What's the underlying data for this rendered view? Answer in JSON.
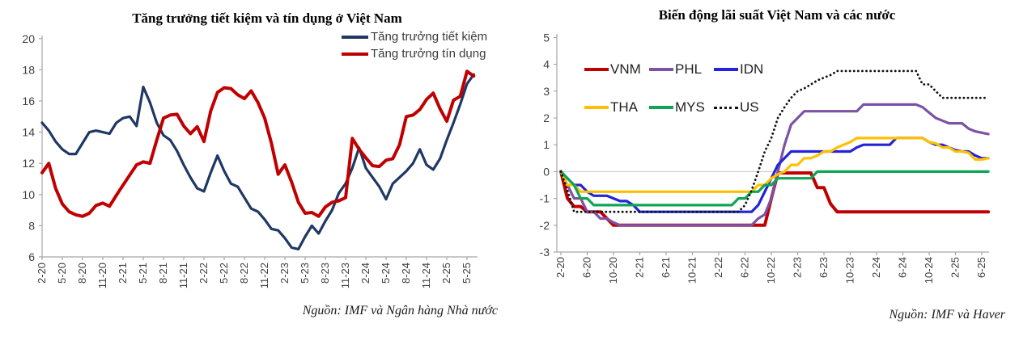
{
  "accent_colors": {
    "navy": "#1F3864",
    "dark_red": "#C00000",
    "purple": "#7C52A5",
    "blue": "#2323D9",
    "gold": "#FFC000",
    "green": "#0FA456",
    "black": "#111111",
    "axis_gray": "#A6A6A6",
    "label_gray": "#404040"
  },
  "chart_data": [
    {
      "type": "line",
      "title": "Tăng trưởng tiết kiệm và tín dụng ở Việt Nam",
      "source": "Nguồn: IMF và Ngân hàng Nhà nước",
      "x_unit": "monthly",
      "x_start_month": "2-20",
      "x_end_month": "6-25",
      "x_tick_labels": [
        "2-20",
        "5-20",
        "8-20",
        "11-20",
        "2-21",
        "5-21",
        "8-21",
        "11-21",
        "2-22",
        "5-22",
        "8-22",
        "11-22",
        "2-23",
        "5-23",
        "8-23",
        "11-23",
        "2-24",
        "5-24",
        "8-24",
        "11-24",
        "2-25",
        "5-25"
      ],
      "y_tick_labels": [
        20,
        18,
        16,
        14,
        12,
        10,
        8,
        6
      ],
      "ylim": [
        6,
        20
      ],
      "grid": false,
      "legend_position": "top-right",
      "legend": [
        {
          "label": "Tăng trưởng tiết kiệm",
          "color": "#1F3864",
          "style": "solid"
        },
        {
          "label": "Tăng trưởng tín dụng",
          "color": "#C00000",
          "style": "solid"
        }
      ],
      "series": [
        {
          "name": "Tăng trưởng tiết kiệm",
          "color": "#1F3864",
          "style": "solid",
          "values": [
            14.6,
            14.1,
            13.4,
            12.9,
            12.6,
            12.6,
            13.3,
            14.0,
            14.1,
            14.0,
            13.9,
            14.6,
            14.9,
            15.0,
            14.4,
            16.9,
            15.9,
            14.6,
            13.8,
            13.5,
            12.8,
            11.9,
            11.1,
            10.4,
            10.2,
            11.4,
            12.5,
            11.5,
            10.7,
            10.5,
            9.8,
            9.1,
            8.9,
            8.4,
            7.8,
            7.7,
            7.2,
            6.6,
            6.5,
            7.3,
            8.0,
            7.5,
            8.3,
            9.0,
            10.1,
            10.7,
            11.7,
            13.0,
            11.7,
            11.1,
            10.5,
            9.7,
            10.7,
            11.1,
            11.5,
            12.0,
            12.9,
            11.9,
            11.6,
            12.3,
            13.5,
            14.6,
            15.8,
            17.1,
            17.7
          ]
        },
        {
          "name": "Tăng trưởng tín dụng",
          "color": "#C00000",
          "style": "solid",
          "values": [
            11.4,
            12.0,
            10.4,
            9.4,
            8.9,
            8.7,
            8.6,
            8.8,
            9.3,
            9.45,
            9.25,
            9.95,
            10.6,
            11.25,
            11.9,
            12.1,
            12.0,
            13.5,
            14.9,
            15.1,
            15.15,
            14.4,
            13.9,
            14.35,
            13.4,
            15.35,
            16.55,
            16.85,
            16.8,
            16.4,
            16.15,
            16.65,
            15.9,
            14.9,
            13.3,
            11.3,
            11.9,
            10.8,
            9.5,
            8.8,
            8.85,
            8.6,
            9.2,
            9.5,
            9.6,
            9.8,
            13.6,
            12.9,
            12.35,
            11.85,
            11.8,
            12.2,
            12.3,
            13.2,
            15.0,
            15.1,
            15.45,
            16.1,
            16.5,
            15.5,
            14.7,
            16.05,
            16.3,
            17.9,
            17.6
          ]
        }
      ]
    },
    {
      "type": "line",
      "title": "Biến động lãi suất Việt Nam và các nước",
      "source": "Nguồn: IMF và Haver",
      "x_unit": "monthly",
      "x_start_month": "2-20",
      "x_end_month": "6-25",
      "x_tick_labels": [
        "2-20",
        "6-20",
        "10-20",
        "2-21",
        "6-21",
        "10-21",
        "2-22",
        "6-22",
        "10-22",
        "2-23",
        "6-23",
        "10-23",
        "2-24",
        "6-24",
        "10-24",
        "2-25",
        "6-25"
      ],
      "y_tick_labels": [
        5,
        4,
        3,
        2,
        1,
        0,
        -1,
        -2,
        -3
      ],
      "ylim": [
        -3,
        5
      ],
      "grid": false,
      "zero_line": true,
      "legend_position": "top-left",
      "legend": [
        {
          "label": "VNM",
          "color": "#C00000",
          "style": "solid"
        },
        {
          "label": "PHL",
          "color": "#7C52A5",
          "style": "solid"
        },
        {
          "label": "IDN",
          "color": "#2323D9",
          "style": "solid"
        },
        {
          "label": "THA",
          "color": "#FFC000",
          "style": "solid"
        },
        {
          "label": "MYS",
          "color": "#0FA456",
          "style": "solid"
        },
        {
          "label": "US",
          "color": "#111111",
          "style": "dotted"
        }
      ],
      "series": [
        {
          "name": "VNM",
          "color": "#C00000",
          "style": "solid",
          "values": [
            0,
            -1.0,
            -1.3,
            -1.3,
            -1.5,
            -1.5,
            -1.5,
            -1.75,
            -2.0,
            -2.0,
            -2.0,
            -2.0,
            -2.0,
            -2.0,
            -2.0,
            -2.0,
            -2.0,
            -2.0,
            -2.0,
            -2.0,
            -2.0,
            -2.0,
            -2.0,
            -2.0,
            -2.0,
            -2.0,
            -2.0,
            -2.0,
            -2.0,
            -2.0,
            -2.0,
            -2.0,
            -1.0,
            -0.05,
            -0.05,
            -0.05,
            -0.05,
            -0.05,
            -0.05,
            -0.6,
            -0.6,
            -1.2,
            -1.5,
            -1.5,
            -1.5,
            -1.5,
            -1.5,
            -1.5,
            -1.5,
            -1.5,
            -1.5,
            -1.5,
            -1.5,
            -1.5,
            -1.5,
            -1.5,
            -1.5,
            -1.5,
            -1.5,
            -1.5,
            -1.5,
            -1.5,
            -1.5,
            -1.5,
            -1.5,
            -1.5
          ]
        },
        {
          "name": "PHL",
          "color": "#7C52A5",
          "style": "solid",
          "values": [
            0,
            -0.5,
            -1.0,
            -1.0,
            -1.5,
            -1.5,
            -1.75,
            -1.75,
            -1.9,
            -2.0,
            -2.0,
            -2.0,
            -2.0,
            -2.0,
            -2.0,
            -2.0,
            -2.0,
            -2.0,
            -2.0,
            -2.0,
            -2.0,
            -2.0,
            -2.0,
            -2.0,
            -2.0,
            -2.0,
            -2.0,
            -2.0,
            -2.0,
            -2.0,
            -1.75,
            -1.6,
            -1.0,
            0.0,
            1.0,
            1.75,
            2.0,
            2.25,
            2.25,
            2.25,
            2.25,
            2.25,
            2.25,
            2.25,
            2.25,
            2.25,
            2.5,
            2.5,
            2.5,
            2.5,
            2.5,
            2.5,
            2.5,
            2.5,
            2.5,
            2.4,
            2.2,
            2.0,
            1.9,
            1.8,
            1.8,
            1.8,
            1.6,
            1.5,
            1.45,
            1.4
          ]
        },
        {
          "name": "IDN",
          "color": "#2323D9",
          "style": "solid",
          "values": [
            0,
            -0.25,
            -0.5,
            -0.5,
            -0.75,
            -0.9,
            -0.9,
            -0.9,
            -1.0,
            -1.1,
            -1.1,
            -1.25,
            -1.5,
            -1.5,
            -1.5,
            -1.5,
            -1.5,
            -1.5,
            -1.5,
            -1.5,
            -1.5,
            -1.5,
            -1.5,
            -1.5,
            -1.5,
            -1.5,
            -1.5,
            -1.5,
            -1.5,
            -1.5,
            -1.25,
            -0.75,
            -0.25,
            0.25,
            0.5,
            0.75,
            0.75,
            0.75,
            0.75,
            0.75,
            0.75,
            0.75,
            0.75,
            0.75,
            0.75,
            0.9,
            1.0,
            1.0,
            1.0,
            1.0,
            1.0,
            1.25,
            1.25,
            1.25,
            1.25,
            1.25,
            1.1,
            1.0,
            1.0,
            0.9,
            0.8,
            0.75,
            0.75,
            0.6,
            0.5,
            0.5
          ]
        },
        {
          "name": "THA",
          "color": "#FFC000",
          "style": "solid",
          "values": [
            0,
            -0.5,
            -0.5,
            -0.75,
            -0.75,
            -0.75,
            -0.75,
            -0.75,
            -0.75,
            -0.75,
            -0.75,
            -0.75,
            -0.75,
            -0.75,
            -0.75,
            -0.75,
            -0.75,
            -0.75,
            -0.75,
            -0.75,
            -0.75,
            -0.75,
            -0.75,
            -0.75,
            -0.75,
            -0.75,
            -0.75,
            -0.75,
            -0.75,
            -0.75,
            -0.5,
            -0.5,
            -0.25,
            -0.1,
            0.0,
            0.25,
            0.25,
            0.5,
            0.5,
            0.6,
            0.75,
            0.75,
            0.9,
            1.0,
            1.1,
            1.25,
            1.25,
            1.25,
            1.25,
            1.25,
            1.25,
            1.25,
            1.25,
            1.25,
            1.25,
            1.25,
            1.1,
            1.05,
            0.9,
            0.9,
            0.75,
            0.75,
            0.7,
            0.45,
            0.45,
            0.5
          ]
        },
        {
          "name": "MYS",
          "color": "#0FA456",
          "style": "solid",
          "values": [
            0,
            -0.25,
            -0.5,
            -1.0,
            -1.0,
            -1.25,
            -1.25,
            -1.25,
            -1.25,
            -1.25,
            -1.25,
            -1.25,
            -1.25,
            -1.25,
            -1.25,
            -1.25,
            -1.25,
            -1.25,
            -1.25,
            -1.25,
            -1.25,
            -1.25,
            -1.25,
            -1.25,
            -1.25,
            -1.25,
            -1.25,
            -1.0,
            -1.0,
            -0.75,
            -0.75,
            -0.5,
            -0.5,
            -0.25,
            -0.25,
            -0.25,
            -0.25,
            -0.25,
            -0.25,
            0,
            0,
            0,
            0,
            0,
            0,
            0,
            0,
            0,
            0,
            0,
            0,
            0,
            0,
            0,
            0,
            0,
            0,
            0,
            0,
            0,
            0,
            0,
            0,
            0,
            0,
            0
          ]
        },
        {
          "name": "US",
          "color": "#111111",
          "style": "dotted",
          "values": [
            0,
            -0.7,
            -1.5,
            -1.5,
            -1.5,
            -1.5,
            -1.5,
            -1.5,
            -1.5,
            -1.5,
            -1.5,
            -1.5,
            -1.5,
            -1.5,
            -1.5,
            -1.5,
            -1.5,
            -1.5,
            -1.5,
            -1.5,
            -1.5,
            -1.5,
            -1.5,
            -1.5,
            -1.5,
            -1.5,
            -1.5,
            -1.5,
            -1.25,
            -0.7,
            0,
            0.75,
            1.25,
            2.0,
            2.4,
            2.75,
            3.0,
            3.1,
            3.25,
            3.4,
            3.5,
            3.6,
            3.75,
            3.75,
            3.75,
            3.75,
            3.75,
            3.75,
            3.75,
            3.75,
            3.75,
            3.75,
            3.75,
            3.75,
            3.75,
            3.25,
            3.25,
            3.0,
            2.75,
            2.75,
            2.75,
            2.75,
            2.75,
            2.75,
            2.75,
            2.75
          ]
        }
      ]
    }
  ]
}
